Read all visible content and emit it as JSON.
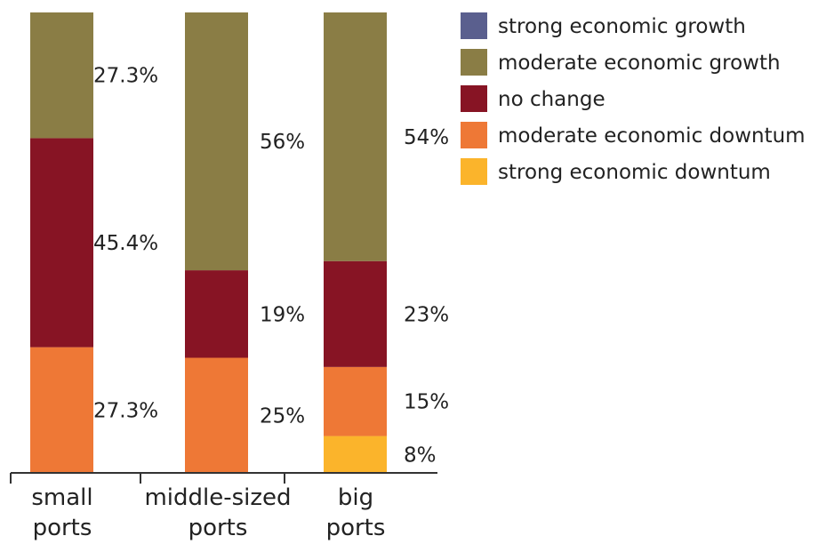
{
  "chart_data": {
    "type": "bar",
    "stacked": true,
    "normalized_percent": true,
    "categories": [
      "small ports",
      "middle-sized ports",
      "big ports"
    ],
    "category_lines": [
      [
        "small",
        "ports"
      ],
      [
        "middle-sized",
        "ports"
      ],
      [
        "big",
        "ports"
      ]
    ],
    "series": [
      {
        "name": "strong economic growth",
        "values": [
          0,
          0,
          0
        ],
        "color": "#5a5f8e"
      },
      {
        "name": "moderate economic growth",
        "values": [
          27.3,
          56,
          54
        ],
        "color": "#8a7d45"
      },
      {
        "name": "no change",
        "values": [
          45.4,
          19,
          23
        ],
        "color": "#871424"
      },
      {
        "name": "moderate economic downtum",
        "values": [
          27.3,
          25,
          15
        ],
        "color": "#ee7836"
      },
      {
        "name": "strong economic downtum",
        "values": [
          0,
          0,
          8
        ],
        "color": "#fbb42b"
      }
    ],
    "data_labels": [
      [
        "",
        "27.3%",
        "45.4%",
        "27.3%",
        ""
      ],
      [
        "",
        "56%",
        "19%",
        "25%",
        ""
      ],
      [
        "",
        "54%",
        "23%",
        "15%",
        "8%"
      ]
    ],
    "title": "",
    "xlabel": "",
    "ylabel": "",
    "ylim": [
      0,
      100
    ],
    "grid": false,
    "legend_position": "top-right"
  }
}
